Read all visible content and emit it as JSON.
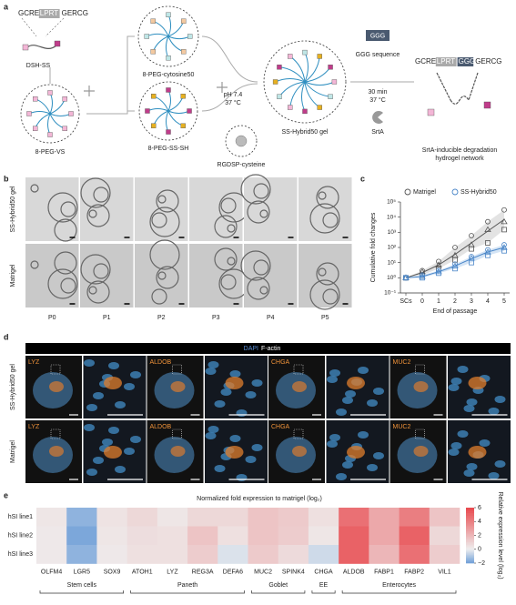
{
  "panel_labels": [
    "a",
    "b",
    "c",
    "d",
    "e"
  ],
  "diagram": {
    "peptide": [
      "GCRE",
      "LPRT",
      "GERCG"
    ],
    "dsh": "DSH-SS",
    "peg_vs": "8-PEG-VS",
    "cytosine": "8-PEG-cytosine50",
    "ss_sh": "8-PEG-SS-SH",
    "condition": [
      "pH 7.4",
      "37 °C"
    ],
    "rgdsp": "RGDSP-cysteine",
    "gel": "SS-Hybrid50 gel",
    "ggg": "GGG",
    "ggg_label": "GGG sequence",
    "incubation": [
      "30 min",
      "37 °C"
    ],
    "srta": "SrtA",
    "product_peptide": [
      "GCRE",
      "LPRT",
      "GGG",
      "GERCG"
    ],
    "network": [
      "SrtA-inducible degradation",
      "hydrogel network"
    ]
  },
  "brightfield": {
    "rows": [
      "SS-Hybrid50 gel",
      "Matrigel"
    ],
    "columns": [
      "P0",
      "P1",
      "P2",
      "P3",
      "P4",
      "P5"
    ]
  },
  "chart_data": [
    {
      "type": "line",
      "categories": [
        "SCs",
        "0",
        "1",
        "2",
        "3",
        "4",
        "5"
      ],
      "xlabel": "End of passage",
      "ylabel": "Cumulative fold changes",
      "log_y": true,
      "ylim": [
        0.1,
        100000
      ],
      "yticks": [
        {
          "value": 0.1,
          "label": "10⁻¹"
        },
        {
          "value": 1,
          "label": "10⁰"
        },
        {
          "value": 10,
          "label": "10¹"
        },
        {
          "value": 100,
          "label": "10²"
        },
        {
          "value": 1000,
          "label": "10³"
        },
        {
          "value": 10000,
          "label": "10⁴"
        },
        {
          "value": 100000,
          "label": "10⁵"
        }
      ],
      "legend": "top",
      "series": [
        {
          "name": "Matrigel",
          "color": "#555555",
          "band_color": "#d0d0d0",
          "values": [
            1,
            2.2,
            7,
            35,
            200,
            1200,
            7000
          ],
          "replicates": [
            [
              1,
              3,
              12,
              100,
              600,
              5000,
              30000
            ],
            [
              1,
              2.5,
              7,
              30,
              150,
              1500,
              5000
            ],
            [
              1,
              1.5,
              4,
              15,
              80,
              200,
              1500
            ]
          ]
        },
        {
          "name": "SS-Hybrid50",
          "color": "#4a86c8",
          "band_color": "#b8d2ee",
          "values": [
            1,
            1.2,
            2.5,
            6,
            18,
            50,
            100
          ],
          "replicates": [
            [
              1,
              1.5,
              3,
              8,
              25,
              70,
              150
            ],
            [
              1,
              1.2,
              2.5,
              6,
              20,
              50,
              100
            ],
            [
              1,
              1,
              2,
              4,
              10,
              30,
              60
            ]
          ]
        }
      ]
    },
    {
      "type": "heatmap",
      "title": "Normalized fold expression to matrigel (log₂)",
      "rows": [
        "hSI line1",
        "hSI line2",
        "hSI line3"
      ],
      "columns": [
        "OLFM4",
        "LGR5",
        "SOX9",
        "ATOH1",
        "LYZ",
        "REG3A",
        "DEFA6",
        "MUC2",
        "SPINK4",
        "CHGA",
        "ALDOB",
        "FABP1",
        "FABP2",
        "VIL1"
      ],
      "values": [
        [
          0.3,
          -1.5,
          0.4,
          0.8,
          0.3,
          0.8,
          0.8,
          1.5,
          1.3,
          0.5,
          4.5,
          2.5,
          4,
          1.5
        ],
        [
          0.2,
          -1.8,
          0.3,
          0.6,
          0.5,
          1.5,
          0.5,
          1.5,
          1.2,
          0.3,
          5,
          2.5,
          5,
          0.8
        ],
        [
          0.2,
          -1.5,
          0.2,
          0.5,
          0.5,
          1.2,
          -0.3,
          1.3,
          0.7,
          -0.5,
          5,
          2,
          4.5,
          1.2
        ]
      ],
      "clim": [
        -2,
        6
      ],
      "colors": [
        "#6f9fd8",
        "#eeeeee",
        "#e8464b"
      ],
      "colorbar_ticks": [
        {
          "value": -2,
          "label": "−2"
        },
        0,
        2,
        4,
        6
      ],
      "colorbar_label": "Relative expression level (log₂)",
      "groups": [
        {
          "label": "Stem cells",
          "span": 3
        },
        {
          "label": "Paneth",
          "span": 4
        },
        {
          "label": "Goblet",
          "span": 2
        },
        {
          "label": "EE",
          "span": 1
        },
        {
          "label": "Enterocytes",
          "span": 4
        }
      ]
    }
  ],
  "staining": {
    "channels": [
      "DAPI",
      "F-actin"
    ],
    "rows": [
      "SS-Hybrid50 gel",
      "Matrigel"
    ],
    "markers": [
      [
        "LYZ",
        "ALDOB",
        "CHGA",
        "MUC2"
      ],
      [
        "LYZ",
        "ALDOB",
        "CHGA",
        "MUC2"
      ]
    ]
  }
}
